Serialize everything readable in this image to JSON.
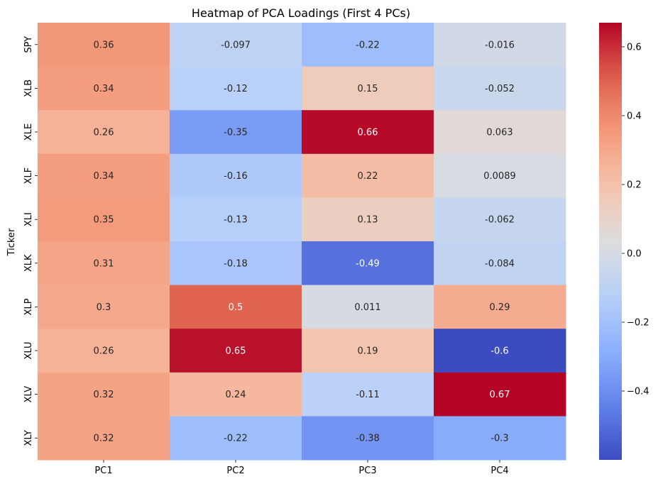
{
  "chart_data": {
    "type": "heatmap",
    "title": "Heatmap of PCA Loadings (First 4 PCs)",
    "xlabel": "",
    "ylabel": "Ticker",
    "columns": [
      "PC1",
      "PC2",
      "PC3",
      "PC4"
    ],
    "rows": [
      "SPY",
      "XLB",
      "XLE",
      "XLF",
      "XLI",
      "XLK",
      "XLP",
      "XLU",
      "XLV",
      "XLY"
    ],
    "values": [
      [
        0.36,
        -0.097,
        -0.22,
        -0.016
      ],
      [
        0.34,
        -0.12,
        0.15,
        -0.052
      ],
      [
        0.26,
        -0.35,
        0.66,
        0.063
      ],
      [
        0.34,
        -0.16,
        0.22,
        0.0089
      ],
      [
        0.35,
        -0.13,
        0.13,
        -0.062
      ],
      [
        0.31,
        -0.18,
        -0.49,
        -0.084
      ],
      [
        0.3,
        0.5,
        0.011,
        0.29
      ],
      [
        0.26,
        0.65,
        0.19,
        -0.6
      ],
      [
        0.32,
        0.24,
        -0.11,
        0.67
      ],
      [
        0.32,
        -0.22,
        -0.38,
        -0.3
      ]
    ],
    "labels": [
      [
        "0.36",
        "-0.097",
        "-0.22",
        "-0.016"
      ],
      [
        "0.34",
        "-0.12",
        "0.15",
        "-0.052"
      ],
      [
        "0.26",
        "-0.35",
        "0.66",
        "0.063"
      ],
      [
        "0.34",
        "-0.16",
        "0.22",
        "0.0089"
      ],
      [
        "0.35",
        "-0.13",
        "0.13",
        "-0.062"
      ],
      [
        "0.31",
        "-0.18",
        "-0.49",
        "-0.084"
      ],
      [
        "0.3",
        "0.5",
        "0.011",
        "0.29"
      ],
      [
        "0.26",
        "0.65",
        "0.19",
        "-0.6"
      ],
      [
        "0.32",
        "0.24",
        "-0.11",
        "0.67"
      ],
      [
        "0.32",
        "-0.22",
        "-0.38",
        "-0.3"
      ]
    ],
    "colormap": "coolwarm",
    "vmin": -0.6,
    "vmax": 0.67,
    "colorbar_ticks": [
      0.6,
      0.4,
      0.2,
      0.0,
      -0.2,
      -0.4
    ],
    "colorbar_tick_labels": [
      "0.6",
      "0.4",
      "0.2",
      "0.0",
      "−0.2",
      "−0.4"
    ],
    "colorbar_position": "right"
  }
}
